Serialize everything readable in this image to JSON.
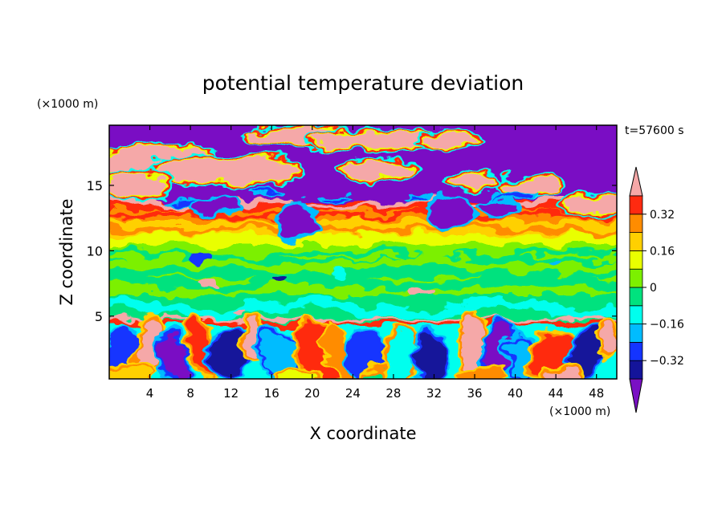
{
  "chart_data": {
    "type": "heatmap",
    "title": "potential temperature deviation",
    "xlabel": "X coordinate",
    "ylabel": "Z coordinate",
    "x_unit": "(×1000 m)",
    "y_unit": "(×1000 m)",
    "time_label": "t=57600 s",
    "xlim": [
      0,
      50
    ],
    "ylim": [
      0.2,
      19.6
    ],
    "x_ticks": [
      4,
      8,
      12,
      16,
      20,
      24,
      28,
      32,
      36,
      40,
      44,
      48
    ],
    "y_ticks": [
      5,
      10,
      15
    ],
    "grid": false,
    "colorbar": {
      "placement": "right",
      "levels": [
        -0.4,
        -0.32,
        -0.24,
        -0.16,
        -0.08,
        0,
        0.08,
        0.16,
        0.24,
        0.32,
        0.4
      ],
      "labeled_levels": [
        "0.32",
        "0.16",
        "0",
        "−0.16",
        "−0.32"
      ],
      "colors": [
        "#7a10c4",
        "#14149a",
        "#1434ff",
        "#00bcff",
        "#00ffee",
        "#00e27e",
        "#7cf000",
        "#e9ff00",
        "#ffd000",
        "#ff8c00",
        "#ff2a10",
        "#f5a8a8"
      ]
    }
  }
}
